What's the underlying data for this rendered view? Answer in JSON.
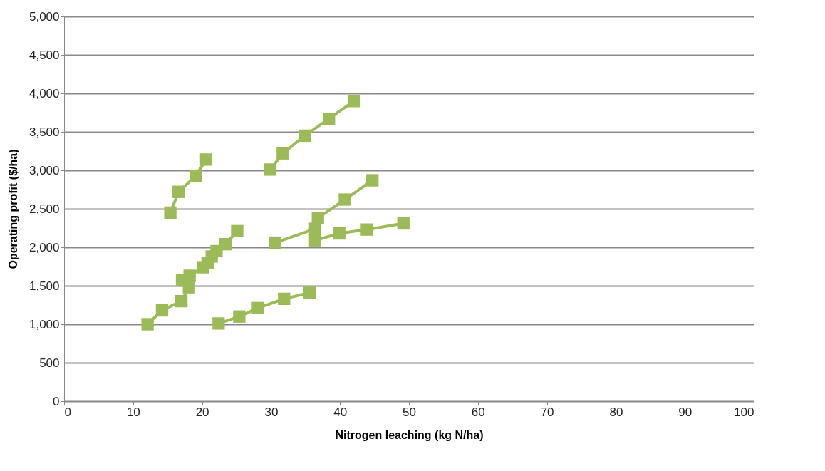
{
  "chart_data": {
    "type": "line",
    "xlabel": "Nitrogen leaching (kg N/ha)",
    "ylabel": "Operating profit ($/ha)",
    "xlim": [
      0,
      100
    ],
    "xticks": [
      0,
      10,
      20,
      30,
      40,
      50,
      60,
      70,
      80,
      90,
      100
    ],
    "ylim": [
      0,
      5000
    ],
    "yticks": [
      {
        "value": 0,
        "label": "0"
      },
      {
        "value": 500,
        "label": "500"
      },
      {
        "value": 1000,
        "label": "1,000"
      },
      {
        "value": 1500,
        "label": "1,500"
      },
      {
        "value": 2000,
        "label": "2,000"
      },
      {
        "value": 2500,
        "label": "2,500"
      },
      {
        "value": 3000,
        "label": "3,000"
      },
      {
        "value": 3500,
        "label": "3,500"
      },
      {
        "value": 4000,
        "label": "4,000"
      },
      {
        "value": 4500,
        "label": "4,500"
      },
      {
        "value": 5000,
        "label": "5,000"
      }
    ],
    "grid": "y",
    "legend": false,
    "marker": "square",
    "line_style": "solid",
    "series": [
      {
        "color": "#9bbb59",
        "x": [
          15.4,
          16.6,
          19.1,
          20.6
        ],
        "values": [
          2450,
          2720,
          2930,
          3140
        ]
      },
      {
        "color": "#9bbb59",
        "x": [
          29.9,
          31.7,
          34.9,
          38.4,
          42.0
        ],
        "values": [
          3010,
          3220,
          3450,
          3670,
          3900
        ]
      },
      {
        "color": "#9bbb59",
        "x": [
          12.1,
          14.2,
          17.0,
          18.1,
          17.1,
          18.2,
          20.1,
          20.8,
          21.4,
          22.1,
          23.4,
          25.1
        ],
        "values": [
          1000,
          1180,
          1300,
          1480,
          1570,
          1630,
          1740,
          1800,
          1880,
          1950,
          2040,
          2210
        ]
      },
      {
        "color": "#9bbb59",
        "x": [
          30.6,
          36.4,
          36.8,
          40.7,
          44.7
        ],
        "values": [
          2060,
          2240,
          2380,
          2620,
          2870
        ]
      },
      {
        "color": "#9bbb59",
        "x": [
          36.4,
          39.9,
          43.9,
          49.2
        ],
        "values": [
          2090,
          2180,
          2230,
          2310
        ]
      },
      {
        "color": "#9bbb59",
        "x": [
          22.4,
          25.4,
          28.1,
          31.9,
          35.6
        ],
        "values": [
          1010,
          1100,
          1210,
          1330,
          1410
        ]
      }
    ]
  }
}
